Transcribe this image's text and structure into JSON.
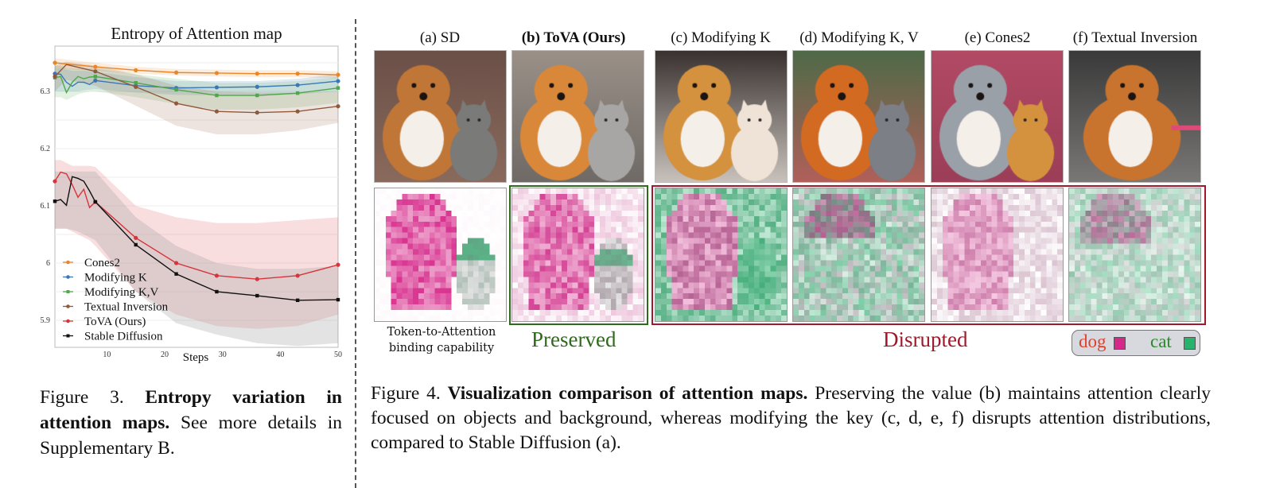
{
  "figure3": {
    "caption_prefix": "Figure 3.",
    "caption_bold": "Entropy variation in attention maps.",
    "caption_rest": "See more details in Supplementary B."
  },
  "chart_data": {
    "type": "line",
    "title": "Entropy of Attention map",
    "xlabel": "Steps",
    "ylabel": "",
    "xlim": [
      1,
      50
    ],
    "ylim": [
      5.85,
      6.38
    ],
    "xticks": [
      10,
      20,
      30,
      40,
      50
    ],
    "yticks": [
      5.9,
      6.0,
      6.1,
      6.2,
      6.3
    ],
    "ytick_labels": [
      "5.9",
      "6",
      "6.1",
      "6.2",
      "6.3"
    ],
    "grid": true,
    "legend_position": "bottom-left",
    "series": [
      {
        "name": "Cones2",
        "color": "#e8862a",
        "marker": "circle",
        "x": [
          1,
          8,
          15,
          22,
          29,
          36,
          43,
          50
        ],
        "values": [
          6.35,
          6.343,
          6.337,
          6.333,
          6.332,
          6.331,
          6.331,
          6.329
        ],
        "band_low": [
          6.34,
          6.336,
          6.331,
          6.328,
          6.326,
          6.325,
          6.325,
          6.323
        ],
        "band_high": [
          6.358,
          6.35,
          6.343,
          6.339,
          6.338,
          6.337,
          6.337,
          6.335
        ]
      },
      {
        "name": "Modifying K",
        "color": "#3a78b5",
        "marker": "circle",
        "x": [
          1,
          2,
          3,
          4,
          5,
          6,
          7,
          8,
          15,
          22,
          29,
          36,
          43,
          50
        ],
        "values": [
          6.331,
          6.33,
          6.316,
          6.309,
          6.316,
          6.316,
          6.312,
          6.319,
          6.31,
          6.306,
          6.307,
          6.308,
          6.311,
          6.318
        ],
        "band_low": [
          6.3,
          6.3,
          6.3,
          6.3,
          6.3,
          6.302,
          6.303,
          6.304,
          6.298,
          6.294,
          6.293,
          6.292,
          6.295,
          6.3
        ],
        "band_high": [
          6.34,
          6.34,
          6.338,
          6.336,
          6.336,
          6.336,
          6.335,
          6.334,
          6.325,
          6.318,
          6.318,
          6.318,
          6.322,
          6.33
        ]
      },
      {
        "name": "Modifying K,V",
        "color": "#4ea84a",
        "marker": "square",
        "x": [
          1,
          2,
          3,
          4,
          5,
          6,
          7,
          8,
          15,
          22,
          29,
          36,
          43,
          50
        ],
        "values": [
          6.324,
          6.326,
          6.298,
          6.316,
          6.326,
          6.322,
          6.325,
          6.326,
          6.315,
          6.303,
          6.293,
          6.293,
          6.297,
          6.306
        ],
        "band_low": [
          6.29,
          6.29,
          6.285,
          6.29,
          6.295,
          6.298,
          6.3,
          6.3,
          6.29,
          6.278,
          6.268,
          6.268,
          6.272,
          6.28
        ],
        "band_high": [
          6.345,
          6.345,
          6.34,
          6.34,
          6.34,
          6.34,
          6.34,
          6.34,
          6.33,
          6.322,
          6.315,
          6.315,
          6.318,
          6.325
        ]
      },
      {
        "name": "Textual Inversion",
        "color": "#8f5a3c",
        "marker": "circle",
        "x": [
          1,
          3,
          8,
          15,
          22,
          29,
          36,
          43,
          50
        ],
        "values": [
          6.326,
          6.347,
          6.335,
          6.308,
          6.279,
          6.265,
          6.263,
          6.265,
          6.274
        ],
        "band_low": [
          6.3,
          6.32,
          6.31,
          6.275,
          6.24,
          6.225,
          6.225,
          6.232,
          6.245
        ],
        "band_high": [
          6.345,
          6.352,
          6.345,
          6.33,
          6.31,
          6.3,
          6.298,
          6.298,
          6.3
        ]
      },
      {
        "name": "ToVA (Ours)",
        "color": "#d8343c",
        "marker": "circle",
        "x": [
          1,
          2,
          3,
          4,
          5,
          6,
          7,
          8,
          15,
          22,
          29,
          36,
          43,
          50
        ],
        "values": [
          6.143,
          6.159,
          6.156,
          6.137,
          6.115,
          6.129,
          6.097,
          6.107,
          6.044,
          6.0,
          5.978,
          5.972,
          5.978,
          5.997
        ],
        "band_low": [
          6.06,
          6.06,
          6.06,
          6.055,
          6.05,
          6.045,
          6.04,
          6.03,
          5.95,
          5.91,
          5.89,
          5.885,
          5.89,
          5.91
        ],
        "band_high": [
          6.18,
          6.18,
          6.175,
          6.17,
          6.17,
          6.17,
          6.17,
          6.168,
          6.1,
          6.08,
          6.07,
          6.07,
          6.075,
          6.08
        ]
      },
      {
        "name": "Stable Diffusion",
        "color": "#111111",
        "marker": "square",
        "x": [
          1,
          2,
          3,
          4,
          5,
          6,
          7,
          8,
          15,
          22,
          29,
          36,
          43,
          50
        ],
        "values": [
          6.108,
          6.111,
          6.101,
          6.151,
          6.148,
          6.143,
          6.126,
          6.107,
          6.032,
          5.981,
          5.95,
          5.943,
          5.935,
          5.936
        ],
        "band_low": [
          6.06,
          6.06,
          6.06,
          6.058,
          6.055,
          6.05,
          6.045,
          6.04,
          5.95,
          5.895,
          5.875,
          5.86,
          5.855,
          5.86
        ],
        "band_high": [
          6.16,
          6.16,
          6.16,
          6.16,
          6.16,
          6.16,
          6.16,
          6.16,
          6.08,
          6.03,
          6.0,
          5.99,
          5.99,
          5.995
        ]
      }
    ]
  },
  "figure4": {
    "columns": [
      {
        "title": "(a) SD",
        "bold": false,
        "map_style": "sd"
      },
      {
        "title": "(b) ToVA (Ours)",
        "bold": true,
        "map_style": "tova"
      },
      {
        "title": "(c) Modifying K",
        "bold": false,
        "map_style": "modk"
      },
      {
        "title": "(d) Modifying K, V",
        "bold": false,
        "map_style": "modkv"
      },
      {
        "title": "(e) Cones2",
        "bold": false,
        "map_style": "cones"
      },
      {
        "title": "(f) Textual Inversion",
        "bold": false,
        "map_style": "ti"
      }
    ],
    "binding_label_line1": "Token-to-Attention",
    "binding_label_line2": "binding capability",
    "preserved_label": "Preserved",
    "disrupted_label": "Disrupted",
    "legend": {
      "dog_label": "dog",
      "dog_color": "#d6288a",
      "cat_label": "cat",
      "cat_color": "#27b36e"
    },
    "caption_prefix": "Figure 4.",
    "caption_bold": "Visualization comparison of attention maps.",
    "caption_rest": "Preserving the value (b) maintains attention clearly focused on objects and background, whereas modifying the key (c, d, e, f) disrupts attention distributions, compared to Stable Diffusion (a)."
  },
  "colors": {
    "preserved": "#2f6a1c",
    "disrupted": "#a0192b"
  }
}
